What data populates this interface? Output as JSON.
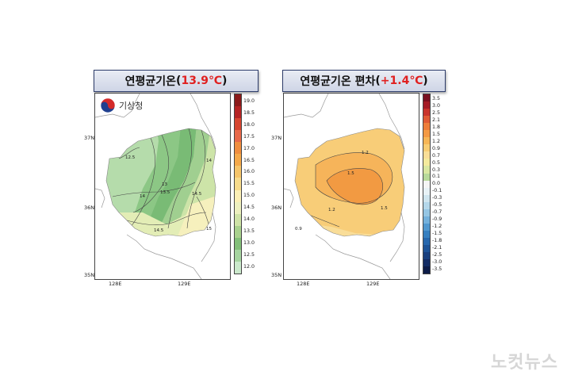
{
  "left_map": {
    "title_text": "연평균기온",
    "title_value": "13.9℃",
    "open_paren": "(",
    "close_paren": ")",
    "logo_text": "기상청",
    "lat_labels": [
      "37N",
      "36N",
      "35N"
    ],
    "lon_labels": [
      "128E",
      "129E"
    ],
    "colorbar_labels": [
      "19.0",
      "18.5",
      "18.0",
      "17.5",
      "17.0",
      "16.5",
      "16.0",
      "15.5",
      "15.0",
      "14.5",
      "14.0",
      "13.5",
      "13.0",
      "12.5",
      "12.0"
    ],
    "colorbar_colors": [
      "#8b1a1a",
      "#b52323",
      "#d6452f",
      "#e8694a",
      "#f08e3f",
      "#f5a94a",
      "#f6c56a",
      "#f8dc8c",
      "#fbefb5",
      "#edf0bf",
      "#cfe3a7",
      "#a9d18e",
      "#83bf79",
      "#a6d4a0",
      "#cbe9cc"
    ],
    "contour_labels": [
      "12.5",
      "14",
      "13",
      "13.5",
      "14",
      "14.5",
      "14.5",
      "15"
    ]
  },
  "right_map": {
    "title_text": "연평균기온 편차",
    "title_value": "+1.4℃",
    "open_paren": "(",
    "close_paren": ")",
    "lat_labels": [
      "37N",
      "36N",
      "35N"
    ],
    "lon_labels": [
      "128E",
      "129E"
    ],
    "colorbar_labels": [
      "3.5",
      "3.0",
      "2.5",
      "2.1",
      "1.8",
      "1.5",
      "1.2",
      "0.9",
      "0.7",
      "0.5",
      "0.3",
      "0.1",
      "0.0",
      "-0.1",
      "-0.3",
      "-0.5",
      "-0.7",
      "-0.9",
      "-1.2",
      "-1.5",
      "-1.8",
      "-2.1",
      "-2.5",
      "-3.0",
      "-3.5"
    ],
    "colorbar_colors": [
      "#7a1020",
      "#a51b26",
      "#c9342c",
      "#e05a35",
      "#ee7d3a",
      "#f39a45",
      "#f6b657",
      "#f8cd74",
      "#f9de97",
      "#f4ea9d",
      "#d9e7a1",
      "#b7d99a",
      "#f5f5f5",
      "#e8f2f6",
      "#cfe5ef",
      "#b4d7ea",
      "#95c6e4",
      "#74b1dc",
      "#5198cf",
      "#357fc0",
      "#2667ad",
      "#1d5397",
      "#183f7e",
      "#132c64",
      "#0d1c48"
    ],
    "contour_labels": [
      "1.2",
      "1.5",
      "1.2",
      "1.5",
      "0.9"
    ]
  },
  "watermark": "노컷뉴스"
}
